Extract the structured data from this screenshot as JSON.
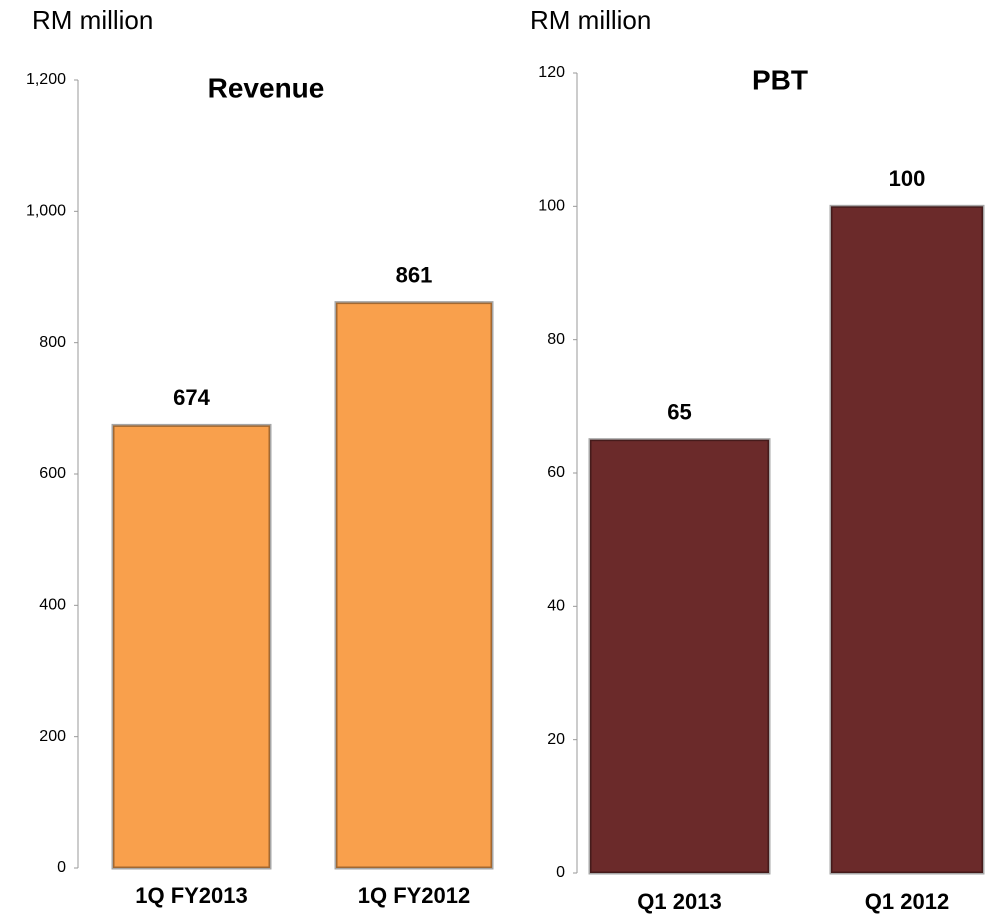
{
  "chart_data": [
    {
      "type": "bar",
      "title": "Revenue",
      "y_label": "RM million",
      "categories": [
        "1Q FY2013",
        "1Q FY2012"
      ],
      "values": [
        674,
        861
      ],
      "color": "#f9a04c",
      "ylim": [
        0,
        1200
      ],
      "yticks": [
        0,
        200,
        400,
        600,
        800,
        {
          "value": 1000,
          "label": "1,000"
        },
        {
          "value": 1200,
          "label": "1,200"
        }
      ]
    },
    {
      "type": "bar",
      "title": "PBT",
      "y_label": "RM million",
      "categories": [
        "Q1 2013",
        "Q1 2012"
      ],
      "values": [
        65,
        100
      ],
      "color": "#6b2a2a",
      "ylim": [
        0,
        120
      ],
      "yticks": [
        0,
        20,
        40,
        60,
        80,
        100,
        120
      ]
    }
  ]
}
